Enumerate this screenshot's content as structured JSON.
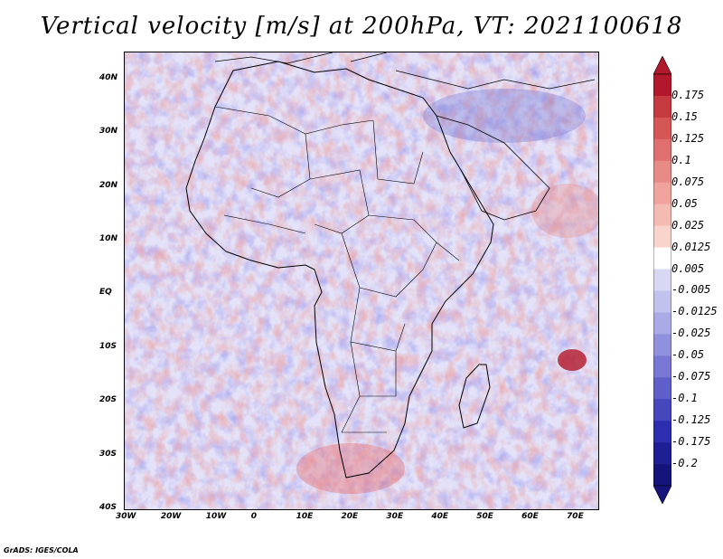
{
  "title": "Vertical velocity [m/s] at 200hPa, VT: 2021100618",
  "map": {
    "lon_range": [
      -30,
      75
    ],
    "lat_range": [
      -40,
      45
    ],
    "lon_ticks": [
      {
        "label": "30W",
        "lon": -30
      },
      {
        "label": "20W",
        "lon": -20
      },
      {
        "label": "10W",
        "lon": -10
      },
      {
        "label": "0",
        "lon": 0
      },
      {
        "label": "10E",
        "lon": 10
      },
      {
        "label": "20E",
        "lon": 20
      },
      {
        "label": "30E",
        "lon": 30
      },
      {
        "label": "40E",
        "lon": 40
      },
      {
        "label": "50E",
        "lon": 50
      },
      {
        "label": "60E",
        "lon": 60
      },
      {
        "label": "70E",
        "lon": 70
      }
    ],
    "lat_ticks": [
      {
        "label": "40N",
        "lat": 40
      },
      {
        "label": "30N",
        "lat": 30
      },
      {
        "label": "20N",
        "lat": 20
      },
      {
        "label": "10N",
        "lat": 10
      },
      {
        "label": "EQ",
        "lat": 0
      },
      {
        "label": "10S",
        "lat": -10
      },
      {
        "label": "20S",
        "lat": -20
      },
      {
        "label": "30S",
        "lat": -30
      },
      {
        "label": "40S",
        "lat": -40
      }
    ]
  },
  "colorbar": {
    "labels": [
      "0.175",
      "0.15",
      "0.125",
      "0.1",
      "0.075",
      "0.05",
      "0.025",
      "0.0125",
      "0.005",
      "-0.005",
      "-0.0125",
      "-0.025",
      "-0.05",
      "-0.075",
      "-0.1",
      "-0.125",
      "-0.175",
      "-0.2"
    ],
    "colors": [
      "#b2182b",
      "#c53a40",
      "#d65555",
      "#e07070",
      "#e88a86",
      "#efa39c",
      "#f4bbb3",
      "#f9d4cd",
      "#ffffff",
      "#d8d8f4",
      "#c2c2ee",
      "#aaaae6",
      "#9090de",
      "#7878d4",
      "#5f5fca",
      "#4646bd",
      "#2d2db0",
      "#1f1f95",
      "#14147a"
    ]
  },
  "credit": "GrADS: IGES/COLA"
}
